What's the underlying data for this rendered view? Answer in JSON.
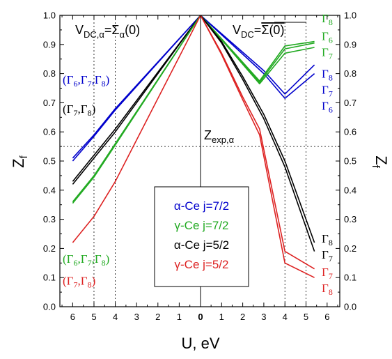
{
  "chart_data": {
    "type": "line",
    "xlabel": "U, eV",
    "ylabel_left": "Z",
    "ylabel_left_sub": "f",
    "ylabel_right": "Z",
    "ylabel_right_sub": "f",
    "ylim": [
      0.0,
      1.0
    ],
    "x_tick_labels": [
      "6",
      "5",
      "4",
      "3",
      "2",
      "1",
      "0",
      "1",
      "2",
      "3",
      "4",
      "5",
      "6"
    ],
    "y_tick_labels": [
      "0.0",
      "0.1",
      "0.2",
      "0.3",
      "0.4",
      "0.5",
      "0.6",
      "0.7",
      "0.8",
      "0.9",
      "1.0"
    ],
    "left_panel": {
      "annotation_main": "V",
      "annotation_sub": "DC,α",
      "annotation_rest": "=Σ",
      "annotation_rest_sub": "α",
      "annotation_tail": "(0)",
      "series": [
        {
          "group": "α-Ce j=7/2",
          "color": "#0000cc",
          "x": [
            6,
            5,
            4,
            0
          ],
          "y": [
            0.51,
            0.59,
            0.68,
            1.0
          ]
        },
        {
          "group": "α-Ce j=7/2",
          "color": "#0000cc",
          "x": [
            6,
            5,
            4,
            0
          ],
          "y": [
            0.5,
            0.585,
            0.675,
            1.0
          ]
        },
        {
          "group": "α-Ce j=5/2",
          "color": "#000000",
          "x": [
            6,
            5,
            4,
            0
          ],
          "y": [
            0.43,
            0.52,
            0.61,
            1.0
          ]
        },
        {
          "group": "α-Ce j=5/2",
          "color": "#000000",
          "x": [
            6,
            5,
            4,
            0
          ],
          "y": [
            0.42,
            0.51,
            0.6,
            1.0
          ]
        },
        {
          "group": "γ-Ce j=7/2",
          "color": "#22aa22",
          "x": [
            6,
            5,
            4,
            0
          ],
          "y": [
            0.36,
            0.45,
            0.56,
            1.0
          ]
        },
        {
          "group": "γ-Ce j=7/2",
          "color": "#22aa22",
          "x": [
            6,
            5,
            4,
            0
          ],
          "y": [
            0.355,
            0.445,
            0.555,
            1.0
          ]
        },
        {
          "group": "γ-Ce j=5/2",
          "color": "#dd2222",
          "x": [
            6,
            5,
            4,
            0
          ],
          "y": [
            0.22,
            0.31,
            0.43,
            1.0
          ]
        }
      ],
      "labels": [
        {
          "text": "(Γ",
          "sub1": "6",
          "mid1": ",Γ",
          "sub2": "7",
          "mid2": ",Γ",
          "sub3": "8",
          "end": ")",
          "color": "#0000cc",
          "y": 0.78
        },
        {
          "text": "(Γ",
          "sub1": "7",
          "mid1": ",Γ",
          "sub2": "8",
          "end": ")",
          "color": "#000000",
          "y": 0.68
        },
        {
          "text": "(Γ",
          "sub1": "6",
          "mid1": ",Γ",
          "sub2": "7",
          "mid2": ",Γ",
          "sub3": "8",
          "end": ")",
          "color": "#22aa22",
          "y": 0.165
        },
        {
          "text": "(Γ",
          "sub1": "7",
          "mid1": ",Γ",
          "sub2": "8",
          "end": ")",
          "color": "#dd2222",
          "y": 0.09
        }
      ]
    },
    "right_panel": {
      "annotation_main": "V",
      "annotation_sub": "DC",
      "annotation_rest": "=",
      "annotation_overline": "Σ(0)",
      "series": [
        {
          "group": "α-Ce j=7/2",
          "color": "#0000cc",
          "x": [
            0,
            3,
            4,
            5.4
          ],
          "y": [
            1.0,
            0.81,
            0.73,
            0.83
          ]
        },
        {
          "group": "α-Ce j=7/2",
          "color": "#0000cc",
          "x": [
            0,
            3,
            4,
            5.4
          ],
          "y": [
            1.0,
            0.8,
            0.715,
            0.8
          ]
        },
        {
          "group": "γ-Ce j=7/2",
          "color": "#22aa22",
          "x": [
            0,
            2.8,
            4,
            5.4
          ],
          "y": [
            1.0,
            0.775,
            0.895,
            0.91
          ]
        },
        {
          "group": "γ-Ce j=7/2",
          "color": "#22aa22",
          "x": [
            0,
            2.8,
            4,
            5.4
          ],
          "y": [
            1.0,
            0.77,
            0.885,
            0.905
          ]
        },
        {
          "group": "γ-Ce j=7/2",
          "color": "#22aa22",
          "x": [
            0,
            2.8,
            4,
            5.4
          ],
          "y": [
            1.0,
            0.765,
            0.87,
            0.89
          ]
        },
        {
          "group": "α-Ce j=5/2",
          "color": "#000000",
          "x": [
            0,
            1,
            2,
            3,
            4,
            5.4
          ],
          "y": [
            1.0,
            0.91,
            0.79,
            0.66,
            0.5,
            0.22
          ]
        },
        {
          "group": "α-Ce j=5/2",
          "color": "#000000",
          "x": [
            0,
            1,
            2,
            3,
            4,
            5.4
          ],
          "y": [
            1.0,
            0.905,
            0.78,
            0.645,
            0.48,
            0.19
          ]
        },
        {
          "group": "γ-Ce j=5/2",
          "color": "#dd2222",
          "x": [
            0,
            1,
            2,
            2.8,
            4,
            5.4
          ],
          "y": [
            1.0,
            0.87,
            0.72,
            0.61,
            0.19,
            0.13
          ]
        },
        {
          "group": "γ-Ce j=5/2",
          "color": "#dd2222",
          "x": [
            0,
            1,
            2,
            2.8,
            4,
            5.4
          ],
          "y": [
            1.0,
            0.865,
            0.71,
            0.59,
            0.15,
            0.1
          ]
        }
      ],
      "labels": [
        {
          "main": "Γ",
          "sub": "8",
          "color": "#22aa22",
          "y": 0.99
        },
        {
          "main": "Γ",
          "sub": "6",
          "color": "#22aa22",
          "y": 0.93
        },
        {
          "main": "Γ",
          "sub": "7",
          "color": "#22aa22",
          "y": 0.875
        },
        {
          "main": "Γ",
          "sub": "8",
          "color": "#0000cc",
          "y": 0.8
        },
        {
          "main": "Γ",
          "sub": "7",
          "color": "#0000cc",
          "y": 0.745
        },
        {
          "main": "Γ",
          "sub": "6",
          "color": "#0000cc",
          "y": 0.69
        },
        {
          "main": "Γ",
          "sub": "8",
          "color": "#000000",
          "y": 0.235
        },
        {
          "main": "Γ",
          "sub": "7",
          "color": "#000000",
          "y": 0.18
        },
        {
          "main": "Γ",
          "sub": "7",
          "color": "#dd2222",
          "y": 0.12
        },
        {
          "main": "Γ",
          "sub": "8",
          "color": "#dd2222",
          "y": 0.065
        }
      ]
    },
    "z_exp": {
      "value": 0.55,
      "label_main": "Z",
      "label_sub": "exp,α"
    },
    "dashed_verticals": {
      "left": [
        5,
        4
      ],
      "right": [
        4,
        5
      ]
    },
    "legend": {
      "placement": "bottom-center",
      "entries": [
        {
          "label": "α-Ce j=7/2",
          "color": "#0000cc"
        },
        {
          "label": "γ-Ce j=7/2",
          "color": "#22aa22"
        },
        {
          "label": "α-Ce j=5/2",
          "color": "#000000"
        },
        {
          "label": "γ-Ce j=5/2",
          "color": "#dd2222"
        }
      ]
    }
  }
}
